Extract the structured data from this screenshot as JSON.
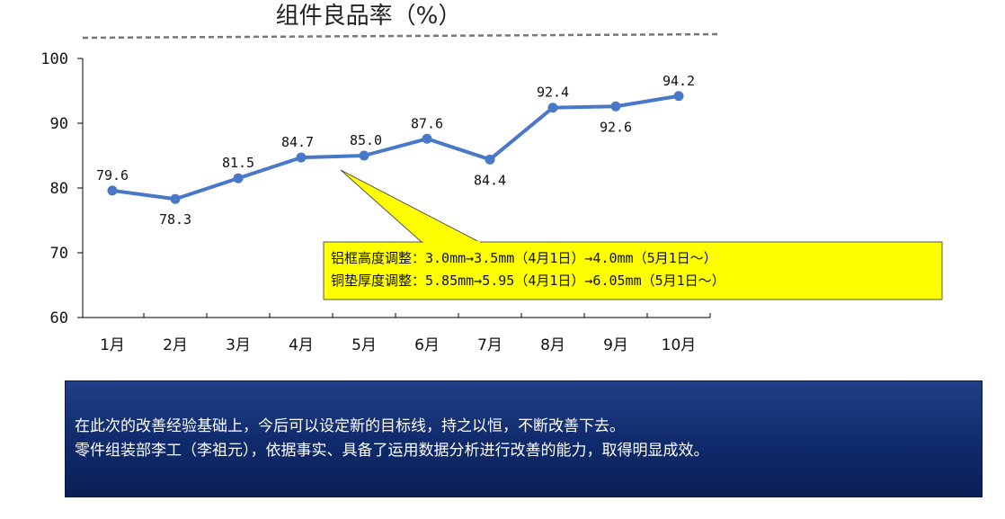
{
  "chart_data": {
    "type": "line",
    "title": "组件良品率（%）",
    "categories": [
      "1月",
      "2月",
      "3月",
      "4月",
      "5月",
      "6月",
      "7月",
      "8月",
      "9月",
      "10月"
    ],
    "series": [
      {
        "values": [
          79.6,
          78.3,
          81.5,
          84.7,
          85.0,
          87.6,
          84.4,
          92.4,
          92.6,
          94.2
        ]
      }
    ],
    "data_labels": [
      "79.6",
      "78.3",
      "81.5",
      "84.7",
      "85.0",
      "87.6",
      "84.4",
      "92.4",
      "92.6",
      "94.2"
    ],
    "ylim": [
      60,
      100
    ],
    "yticks": [
      "60",
      "70",
      "80",
      "90",
      "100"
    ],
    "xlabel": "",
    "ylabel": "",
    "grid": false,
    "line_color": "#4a78c8",
    "annotation": {
      "anchor_category": "5月",
      "lines": [
        "铝框高度调整：3.0mm→3.5mm（4月1日）→4.0mm（5月1日～）",
        "铜垫厚度调整：5.85mm→5.95（4月1日）→6.05mm（5月1日～）"
      ],
      "fill": "#ffff00"
    }
  },
  "summary": {
    "line1": "在此次的改善经验基础上，今后可以设定新的目标线，持之以恒，不断改善下去。",
    "line2": "零件组装部李工（李祖元），依据事实、具备了运用数据分析进行改善的能力，取得明显成效。"
  }
}
